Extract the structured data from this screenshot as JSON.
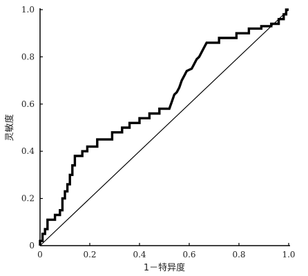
{
  "chart_data": {
    "type": "line",
    "title": "",
    "xlabel": "1－特异度",
    "ylabel": "灵敏度",
    "xlim": [
      0,
      1
    ],
    "ylim": [
      0,
      1
    ],
    "xticks": [
      "0",
      "0.2",
      "0.4",
      "0.6",
      "0.8",
      "1.0"
    ],
    "yticks": [
      "0",
      "0.2",
      "0.4",
      "0.6",
      "0.8",
      "1.0"
    ],
    "grid": false,
    "legend": "none",
    "colors": {
      "curve": "#000000",
      "reference": "#000000",
      "axis": "#000000",
      "background": "#ffffff"
    },
    "series": [
      {
        "values": [
          [
            0,
            0
          ],
          [
            0,
            0.02
          ],
          [
            0.01,
            0.02
          ],
          [
            0.01,
            0.05
          ],
          [
            0.02,
            0.05
          ],
          [
            0.02,
            0.07
          ],
          [
            0.03,
            0.07
          ],
          [
            0.03,
            0.11
          ],
          [
            0.06,
            0.11
          ],
          [
            0.06,
            0.13
          ],
          [
            0.08,
            0.13
          ],
          [
            0.08,
            0.15
          ],
          [
            0.09,
            0.15
          ],
          [
            0.09,
            0.2
          ],
          [
            0.1,
            0.2
          ],
          [
            0.1,
            0.23
          ],
          [
            0.11,
            0.23
          ],
          [
            0.11,
            0.26
          ],
          [
            0.12,
            0.26
          ],
          [
            0.12,
            0.3
          ],
          [
            0.13,
            0.3
          ],
          [
            0.13,
            0.34
          ],
          [
            0.14,
            0.34
          ],
          [
            0.14,
            0.38
          ],
          [
            0.17,
            0.38
          ],
          [
            0.17,
            0.4
          ],
          [
            0.19,
            0.4
          ],
          [
            0.19,
            0.42
          ],
          [
            0.23,
            0.42
          ],
          [
            0.23,
            0.45
          ],
          [
            0.29,
            0.45
          ],
          [
            0.29,
            0.48
          ],
          [
            0.33,
            0.48
          ],
          [
            0.33,
            0.5
          ],
          [
            0.36,
            0.5
          ],
          [
            0.36,
            0.52
          ],
          [
            0.4,
            0.52
          ],
          [
            0.4,
            0.54
          ],
          [
            0.44,
            0.54
          ],
          [
            0.44,
            0.56
          ],
          [
            0.48,
            0.56
          ],
          [
            0.48,
            0.58
          ],
          [
            0.52,
            0.58
          ],
          [
            0.53,
            0.61
          ],
          [
            0.54,
            0.64
          ],
          [
            0.55,
            0.65
          ],
          [
            0.56,
            0.67
          ],
          [
            0.57,
            0.7
          ],
          [
            0.58,
            0.72
          ],
          [
            0.59,
            0.74
          ],
          [
            0.61,
            0.75
          ],
          [
            0.62,
            0.77
          ],
          [
            0.63,
            0.79
          ],
          [
            0.64,
            0.8
          ],
          [
            0.65,
            0.82
          ],
          [
            0.66,
            0.84
          ],
          [
            0.67,
            0.86
          ],
          [
            0.72,
            0.86
          ],
          [
            0.72,
            0.88
          ],
          [
            0.79,
            0.88
          ],
          [
            0.79,
            0.9
          ],
          [
            0.84,
            0.9
          ],
          [
            0.84,
            0.92
          ],
          [
            0.89,
            0.92
          ],
          [
            0.89,
            0.93
          ],
          [
            0.93,
            0.93
          ],
          [
            0.93,
            0.94
          ],
          [
            0.96,
            0.94
          ],
          [
            0.96,
            0.96
          ],
          [
            0.98,
            0.96
          ],
          [
            0.98,
            0.98
          ],
          [
            0.99,
            0.98
          ],
          [
            0.99,
            1.0
          ],
          [
            1.0,
            1.0
          ]
        ]
      },
      {
        "values": [
          [
            0,
            0
          ],
          [
            1,
            1
          ]
        ]
      }
    ]
  }
}
